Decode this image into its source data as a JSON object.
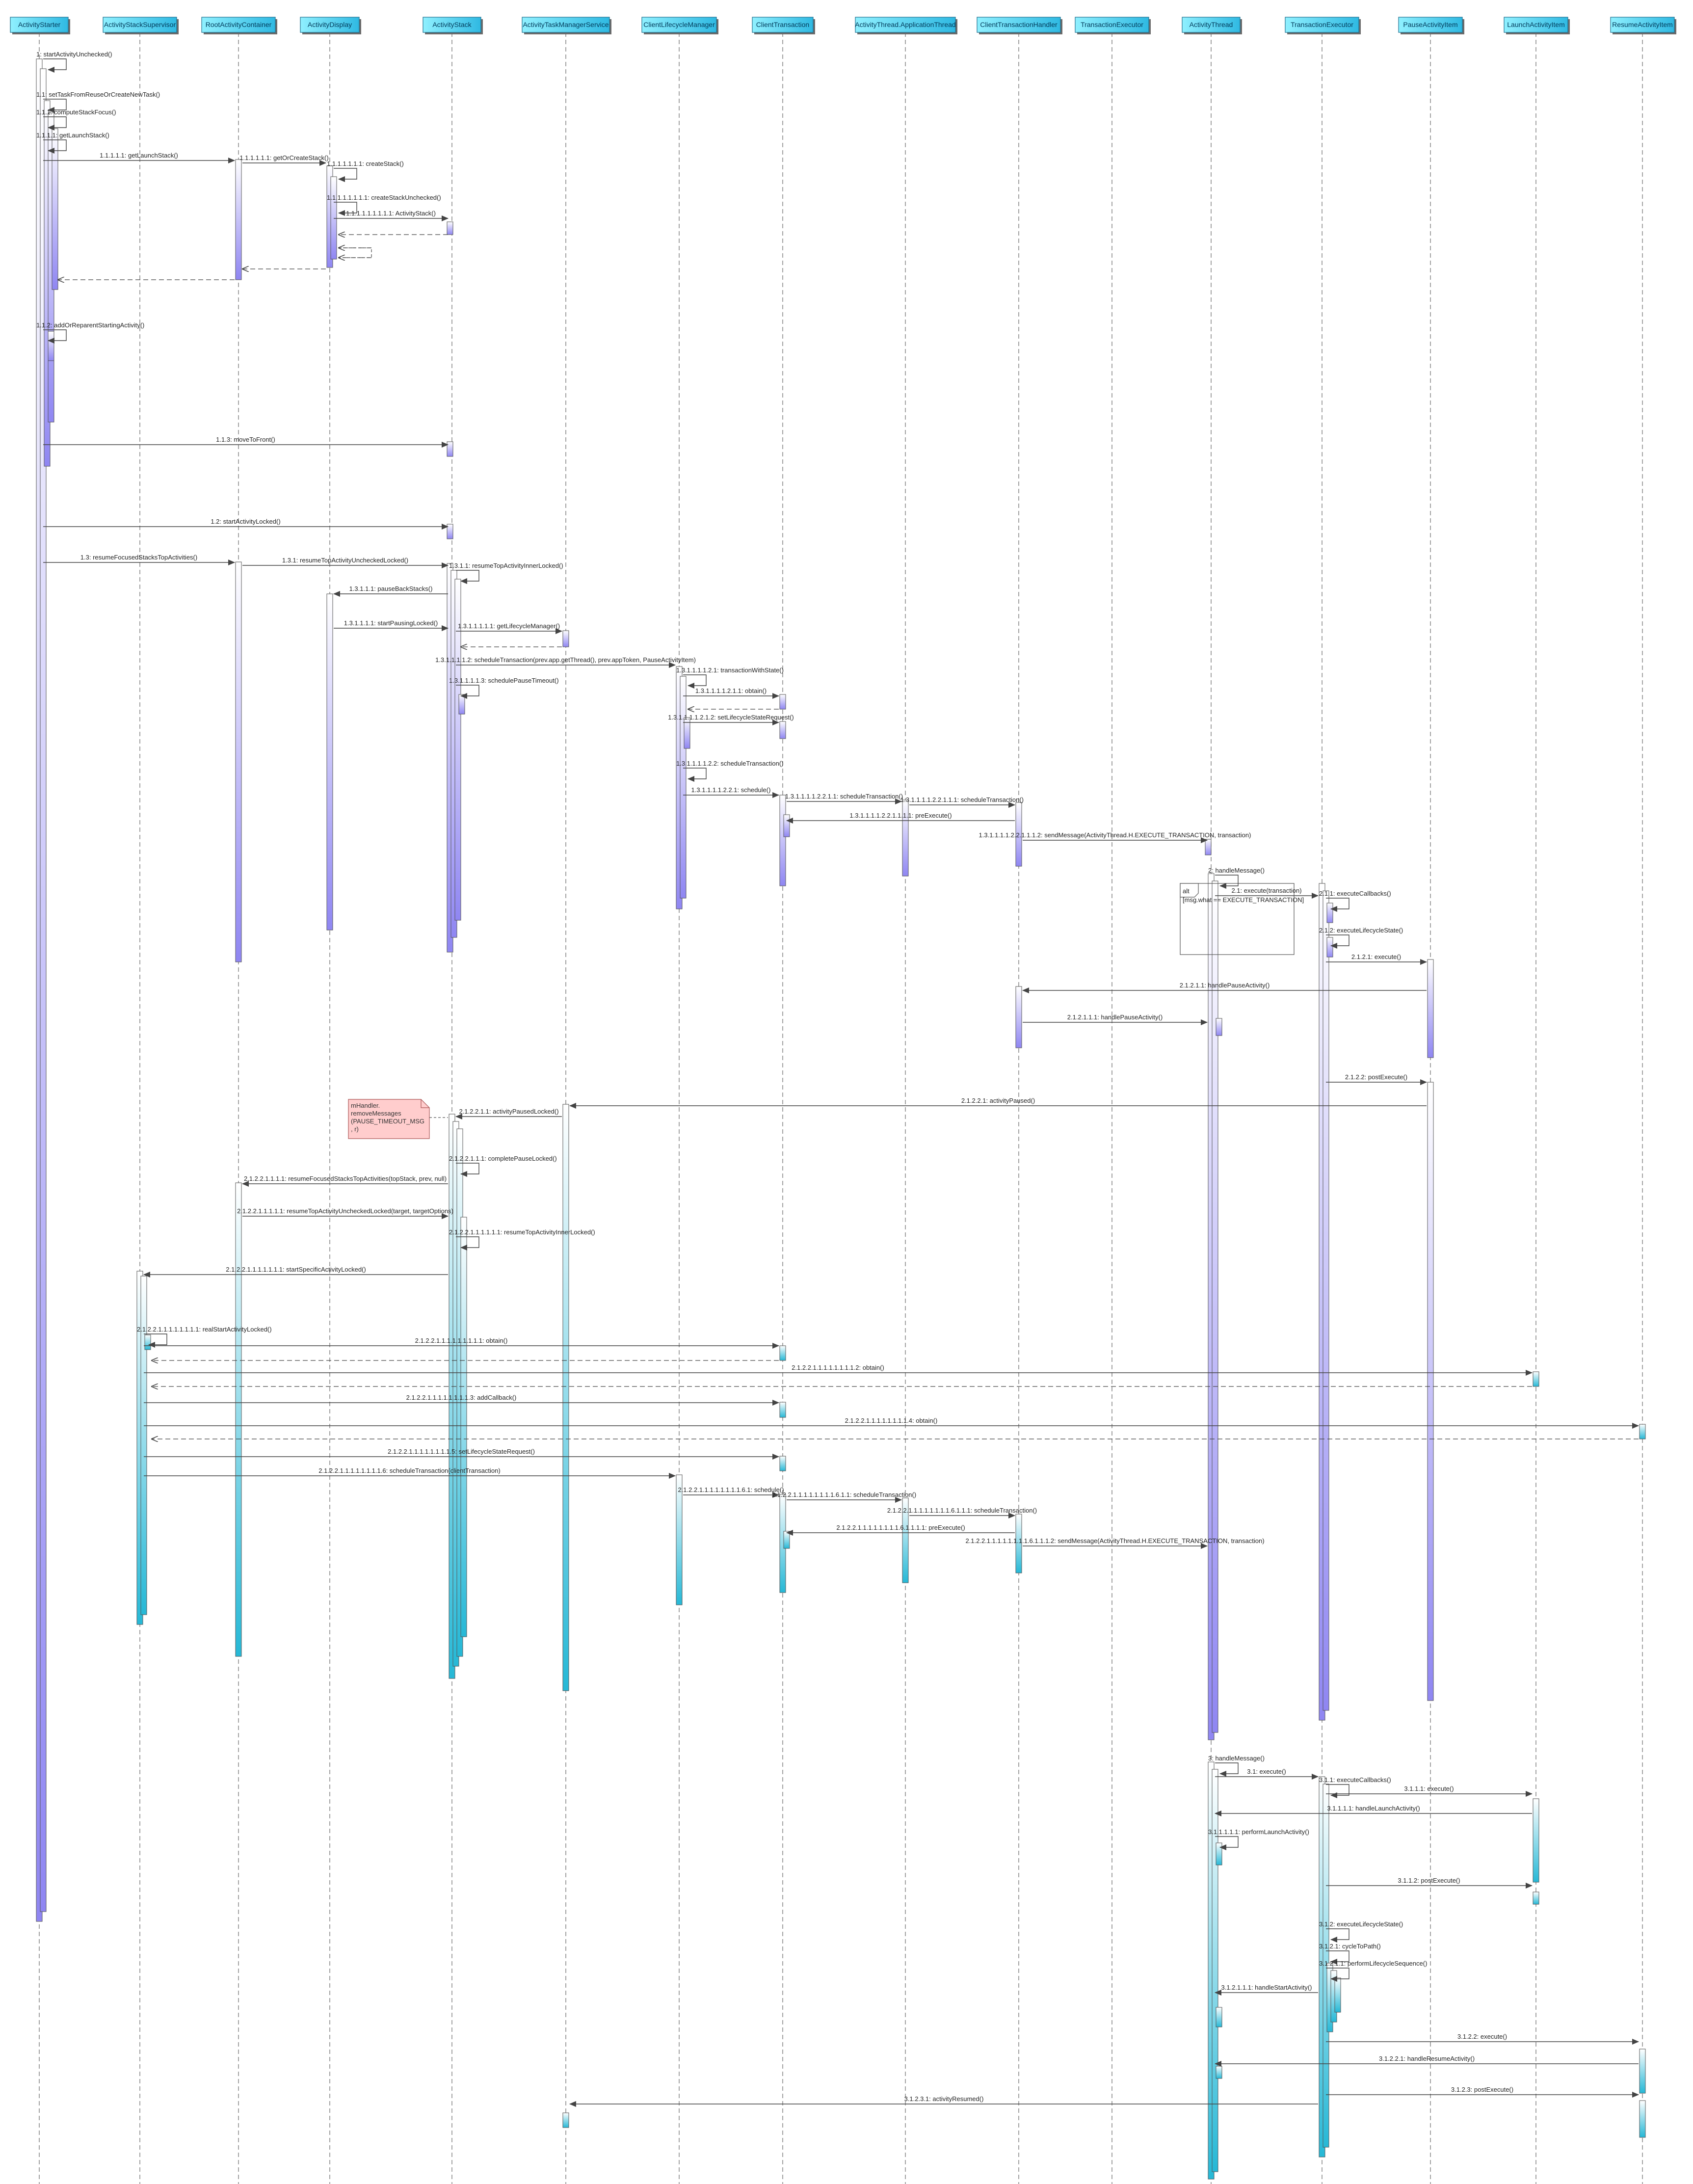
{
  "participants": [
    "ActivityStarter",
    "ActivityStackSupervisor",
    "RootActivityContainer",
    "ActivityDisplay",
    "ActivityStack",
    "ActivityTaskManagerService",
    "ClientLifecycleManager",
    "ClientTransaction",
    "ActivityThread.ApplicationThread",
    "ClientTransactionHandler",
    "TransactionExecutor",
    "ActivityThread",
    "TransactionExecutor",
    "PauseActivityItem",
    "LaunchActivityItem",
    "ResumeActivityItem"
  ],
  "messages": [
    {
      "label": "1: startActivityUnchecked()"
    },
    {
      "label": "1.1: setTaskFromReuseOrCreateNewTask()"
    },
    {
      "label": "1.1.1: computeStackFocus()"
    },
    {
      "label": "1.1.1.1: getLaunchStack()"
    },
    {
      "label": "1.1.1.1.1: getLaunchStack()"
    },
    {
      "label": "1.1.1.1.1.1: getOrCreateStack()"
    },
    {
      "label": "1.1.1.1.1.1.1: createStack()"
    },
    {
      "label": "1.1.1.1.1.1.1.1: createStackUnchecked()"
    },
    {
      "label": "1.1.1.1.1.1.1.1.1: ActivityStack()"
    },
    {
      "label": "1.1.2: addOrReparentStartingActivity()"
    },
    {
      "label": "1.1.3: moveToFront()"
    },
    {
      "label": "1.2: startActivityLocked()"
    },
    {
      "label": "1.3: resumeFocusedStacksTopActivities()"
    },
    {
      "label": "1.3.1: resumeTopActivityUncheckedLocked()"
    },
    {
      "label": "1.3.1.1: resumeTopActivityInnerLocked()"
    },
    {
      "label": "1.3.1.1.1: pauseBackStacks()"
    },
    {
      "label": "1.3.1.1.1.1: startPausingLocked()"
    },
    {
      "label": "1.3.1.1.1.1.1: getLifecycleManager()"
    },
    {
      "label": "1.3.1.1.1.1.2: scheduleTransaction(prev.app.getThread(), prev.appToken, PauseActivityItem)"
    },
    {
      "label": "1.3.1.1.1.1.2.1: transactionWithState()"
    },
    {
      "label": "1.3.1.1.1.1.2.1.1: obtain()"
    },
    {
      "label": "1.3.1.1.1.1.2.1.2: setLifecycleStateRequest()"
    },
    {
      "label": "1.3.1.1.1.1.3: schedulePauseTimeout()"
    },
    {
      "label": "1.3.1.1.1.1.2.2: scheduleTransaction()"
    },
    {
      "label": "1.3.1.1.1.1.2.2.1: schedule()"
    },
    {
      "label": "1.3.1.1.1.1.2.2.1.1: scheduleTransaction()"
    },
    {
      "label": "1.3.1.1.1.1.2.2.1.1.1: scheduleTransaction()"
    },
    {
      "label": "1.3.1.1.1.1.2.2.1.1.1.1: preExecute()"
    },
    {
      "label": "1.3.1.1.1.1.2.2.1.1.1.2: sendMessage(ActivityThread.H.EXECUTE_TRANSACTION, transaction)"
    },
    {
      "label": "2: handleMessage()"
    },
    {
      "label": "2.1: execute(transaction)"
    },
    {
      "label": "2.1.1: executeCallbacks()"
    },
    {
      "label": "2.1.2: executeLifecycleState()"
    },
    {
      "label": "2.1.2.1: execute()"
    },
    {
      "label": "2.1.2.1.1: handlePauseActivity()"
    },
    {
      "label": "2.1.2.1.1.1: handlePauseActivity()"
    },
    {
      "label": "2.1.2.2: postExecute()"
    },
    {
      "label": "2.1.2.2.1: activityPaused()"
    },
    {
      "label": "2.1.2.2.1.1: activityPausedLocked()"
    },
    {
      "label": "2.1.2.2.1.1.1: completePauseLocked()"
    },
    {
      "label": "2.1.2.2.1.1.1.1: resumeFocusedStacksTopActivities(topStack, prev, null)"
    },
    {
      "label": "2.1.2.2.1.1.1.1.1: resumeTopActivityUncheckedLocked(target, targetOptions)"
    },
    {
      "label": "2.1.2.2.1.1.1.1.1.1: resumeTopActivityInnerLocked()"
    },
    {
      "label": "2.1.2.2.1.1.1.1.1.1.1: startSpecificActivityLocked()"
    },
    {
      "label": "2.1.2.2.1.1.1.1.1.1.1.1: realStartActivityLocked()"
    },
    {
      "label": "2.1.2.2.1.1.1.1.1.1.1.1.1: obtain()"
    },
    {
      "label": "2.1.2.2.1.1.1.1.1.1.1.1.2: obtain()"
    },
    {
      "label": "2.1.2.2.1.1.1.1.1.1.1.1.3: addCallback()"
    },
    {
      "label": "2.1.2.2.1.1.1.1.1.1.1.1.4: obtain()"
    },
    {
      "label": "2.1.2.2.1.1.1.1.1.1.1.1.5: setLifecycleStateRequest()"
    },
    {
      "label": "2.1.2.2.1.1.1.1.1.1.1.1.6: scheduleTransaction(clientTransaction)"
    },
    {
      "label": "2.1.2.2.1.1.1.1.1.1.1.1.6.1: schedule()"
    },
    {
      "label": "2.1.2.2.1.1.1.1.1.1.1.1.6.1.1: scheduleTransaction()"
    },
    {
      "label": "2.1.2.2.1.1.1.1.1.1.1.1.6.1.1.1: scheduleTransaction()"
    },
    {
      "label": "2.1.2.2.1.1.1.1.1.1.1.1.6.1.1.1.1: preExecute()"
    },
    {
      "label": "2.1.2.2.1.1.1.1.1.1.1.1.6.1.1.1.2: sendMessage(ActivityThread.H.EXECUTE_TRANSACTION, transaction)"
    },
    {
      "label": "3: handleMessage()"
    },
    {
      "label": "3.1: execute()"
    },
    {
      "label": "3.1.1: executeCallbacks()"
    },
    {
      "label": "3.1.1.1: execute()"
    },
    {
      "label": "3.1.1.1.1: handleLaunchActivity()"
    },
    {
      "label": "3.1.1.1.1.1: performLaunchActivity()"
    },
    {
      "label": "3.1.1.2: postExecute()"
    },
    {
      "label": "3.1.2: executeLifecycleState()"
    },
    {
      "label": "3.1.2.1: cycleToPath()"
    },
    {
      "label": "3.1.2.1.1: performLifecycleSequence()"
    },
    {
      "label": "3.1.2.1.1.1: handleStartActivity()"
    },
    {
      "label": "3.1.2.2: execute()"
    },
    {
      "label": "3.1.2.2.1: handleResumeActivity()"
    },
    {
      "label": "3.1.2.3: postExecute()"
    },
    {
      "label": "3.1.2.3.1: activityResumed()"
    }
  ],
  "fragment": {
    "operator": "alt",
    "guard": "[msg.what == EXECUTE_TRANSACTION]"
  },
  "note": {
    "lines": [
      "mHandler.",
      "removeMessages",
      "(PAUSE_TIMEOUT_MSG",
      ", r)"
    ]
  },
  "colors": {
    "head": "#3fd2ee",
    "purple": "#8f86f2",
    "teal": "#26b8d6",
    "line": "#444444",
    "note": "#ffcdcd"
  }
}
